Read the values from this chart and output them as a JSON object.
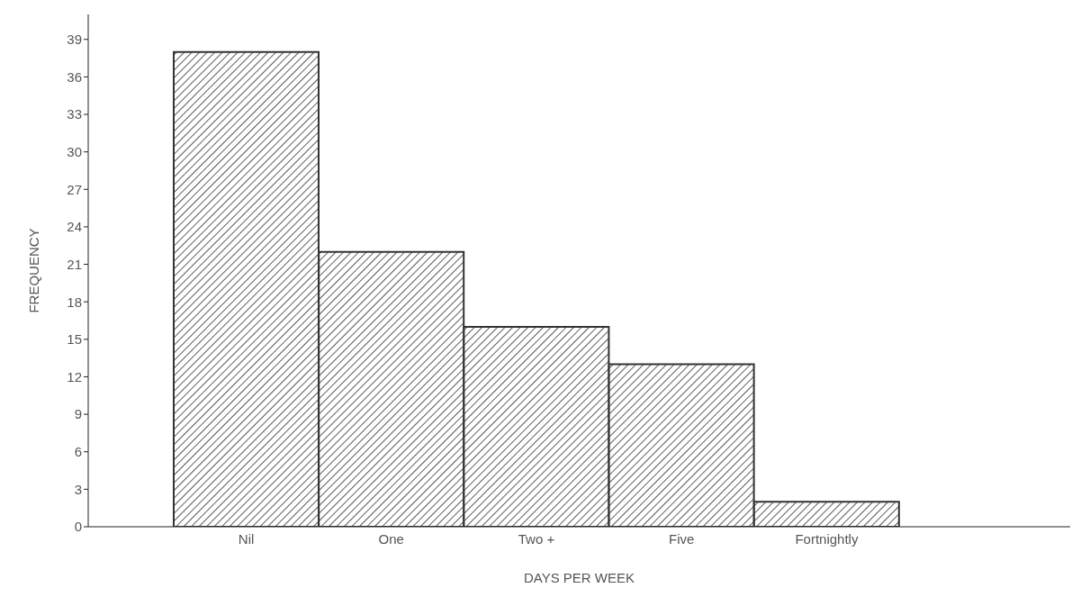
{
  "chart_data": {
    "type": "bar",
    "xlabel": "DAYS PER WEEK",
    "ylabel": "FREQUENCY",
    "categories": [
      "Nil",
      "One",
      "Two +",
      "Five",
      "Fortnightly"
    ],
    "values": [
      38,
      22,
      16,
      13,
      2
    ],
    "color": "#333333",
    "ylim": [
      0,
      41
    ],
    "yticks": [
      0,
      3,
      6,
      9,
      12,
      15,
      18,
      21,
      24,
      27,
      30,
      33,
      36,
      39
    ],
    "grid": false
  }
}
